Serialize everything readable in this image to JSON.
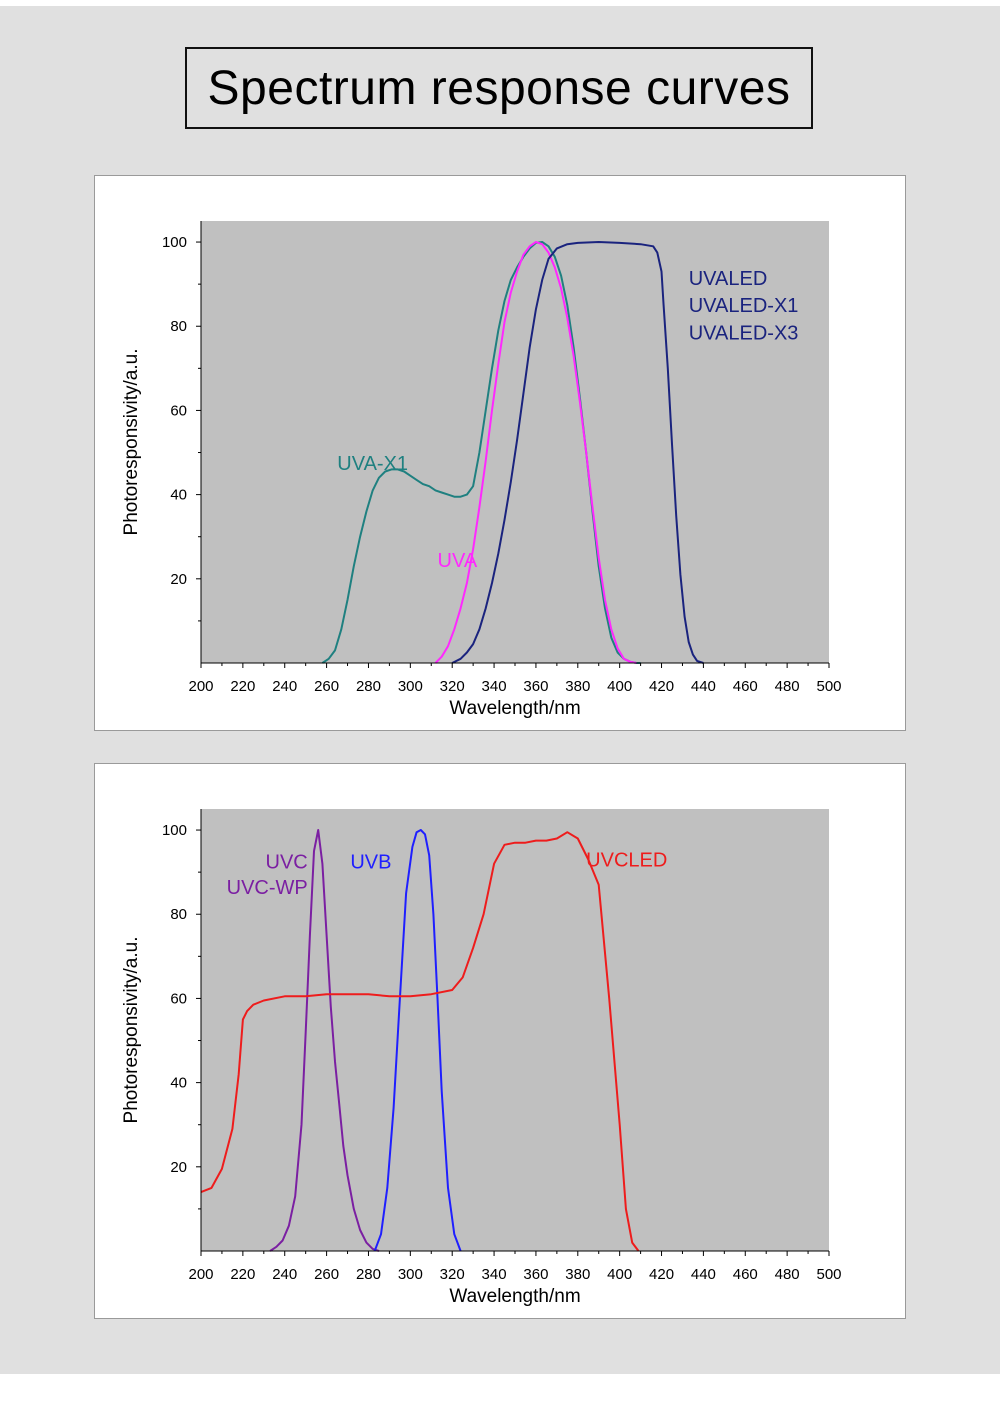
{
  "page": {
    "title": "Spectrum response curves",
    "colors": {
      "page_bg": "#e0e0e0",
      "plot_bg": "#c0c0c0",
      "panel_bg": "#ffffff"
    }
  },
  "chart_data": [
    {
      "type": "line",
      "title": "",
      "xlabel": "Wavelength/nm",
      "ylabel": "Photoresponsivity/a.u.",
      "xlim": [
        200,
        500
      ],
      "ylim": [
        0,
        105
      ],
      "x_ticks": [
        200,
        220,
        240,
        260,
        280,
        300,
        320,
        340,
        360,
        380,
        400,
        420,
        440,
        460,
        480,
        500
      ],
      "y_ticks": [
        20,
        40,
        60,
        80,
        100
      ],
      "grid": false,
      "labels": [
        {
          "text": "UVA-X1",
          "color": "#1f8080",
          "x": 282,
          "y": 47.5,
          "anchor": "middle"
        },
        {
          "text": "UVA",
          "color": "#ff28ff",
          "x": 313,
          "y": 24.5,
          "anchor": "start"
        },
        {
          "text": "UVALED",
          "color": "#1a237e",
          "x": 433,
          "y": 91.5,
          "anchor": "start"
        },
        {
          "text": "UVALED-X1",
          "color": "#1a237e",
          "x": 433,
          "y": 85,
          "anchor": "start"
        },
        {
          "text": "UVALED-X3",
          "color": "#1a237e",
          "x": 433,
          "y": 78.5,
          "anchor": "start"
        }
      ],
      "series": [
        {
          "color": "#1f8080",
          "x": [
            258,
            261,
            264,
            267,
            270,
            273,
            276,
            279,
            282,
            285,
            288,
            291,
            294,
            297,
            300,
            303,
            306,
            309,
            312,
            315,
            318,
            321,
            324,
            327,
            330,
            333,
            336,
            339,
            342,
            345,
            348,
            351,
            354,
            357,
            360,
            363,
            366,
            369,
            372,
            375,
            378,
            381,
            384,
            387,
            390,
            393,
            396,
            399,
            402,
            405,
            408,
            410
          ],
          "y": [
            0,
            1,
            3,
            8,
            15,
            23,
            30,
            36,
            41,
            44,
            45.5,
            46,
            46,
            45.5,
            44.5,
            43.5,
            42.5,
            42,
            41,
            40.5,
            40,
            39.5,
            39.5,
            40,
            42,
            50,
            60,
            70,
            79,
            86,
            91,
            94,
            96.5,
            98.5,
            99.8,
            100,
            99,
            96.5,
            92,
            85,
            75,
            63,
            50,
            36,
            23,
            13,
            6,
            2.5,
            1,
            0.3,
            0,
            0
          ]
        },
        {
          "color": "#ff28ff",
          "x": [
            312,
            315,
            318,
            321,
            324,
            327,
            330,
            333,
            336,
            339,
            342,
            345,
            348,
            351,
            354,
            357,
            360,
            363,
            366,
            369,
            372,
            375,
            378,
            381,
            384,
            387,
            390,
            393,
            396,
            399,
            402,
            405,
            408
          ],
          "y": [
            0,
            1.5,
            4,
            8,
            13,
            19,
            27,
            37,
            48,
            60,
            71,
            81,
            88,
            93,
            97,
            99,
            100,
            99.5,
            97.5,
            94,
            89,
            82,
            73,
            62,
            50,
            37,
            25,
            15,
            8,
            3.5,
            1,
            0.3,
            0
          ]
        },
        {
          "color": "#1a237e",
          "x": [
            320,
            324,
            327,
            330,
            333,
            336,
            339,
            342,
            345,
            348,
            351,
            354,
            357,
            360,
            363,
            366,
            370,
            375,
            380,
            390,
            400,
            410,
            416,
            418,
            420,
            421,
            423,
            425,
            427,
            429,
            431,
            433,
            435,
            437,
            440
          ],
          "y": [
            0,
            1,
            2.5,
            4.5,
            8,
            13,
            19,
            26,
            34,
            43,
            53,
            64,
            75,
            84,
            91,
            96,
            98.5,
            99.5,
            99.8,
            100,
            99.8,
            99.5,
            99,
            97.5,
            93,
            85,
            70,
            52,
            35,
            21,
            11,
            5,
            2,
            0.5,
            0
          ]
        }
      ]
    },
    {
      "type": "line",
      "title": "",
      "xlabel": "Wavelength/nm",
      "ylabel": "Photoresponsivity/a.u.",
      "xlim": [
        200,
        500
      ],
      "ylim": [
        0,
        105
      ],
      "x_ticks": [
        200,
        220,
        240,
        260,
        280,
        300,
        320,
        340,
        360,
        380,
        400,
        420,
        440,
        460,
        480,
        500
      ],
      "y_ticks": [
        20,
        40,
        60,
        80,
        100
      ],
      "grid": false,
      "labels": [
        {
          "text": "UVC",
          "color": "#7b1fa2",
          "x": 251,
          "y": 92.5,
          "anchor": "end"
        },
        {
          "text": "UVC-WP",
          "color": "#7b1fa2",
          "x": 251,
          "y": 86.5,
          "anchor": "end"
        },
        {
          "text": "UVB",
          "color": "#1f1fff",
          "x": 291,
          "y": 92.5,
          "anchor": "end"
        },
        {
          "text": "UVCLED",
          "color": "#ee1c1c",
          "x": 384,
          "y": 93,
          "anchor": "start"
        }
      ],
      "series": [
        {
          "color": "#7b1fa2",
          "x": [
            233,
            236,
            239,
            242,
            245,
            248,
            250,
            252,
            254,
            256,
            258,
            260,
            262,
            264,
            266,
            268,
            270,
            273,
            276,
            279,
            282,
            285
          ],
          "y": [
            0,
            1,
            2.5,
            6,
            13,
            30,
            52,
            75,
            95,
            100,
            92,
            75,
            58,
            45,
            35,
            25,
            18,
            10,
            5,
            2,
            0.5,
            0
          ]
        },
        {
          "color": "#1f1fff",
          "x": [
            283,
            286,
            289,
            292,
            295,
            298,
            301,
            303,
            305,
            307,
            309,
            311,
            313,
            315,
            318,
            321,
            324
          ],
          "y": [
            0,
            4,
            15,
            34,
            60,
            85,
            96,
            99.5,
            100,
            99,
            94,
            80,
            60,
            38,
            15,
            4,
            0
          ]
        },
        {
          "color": "#ee1c1c",
          "x": [
            200,
            205,
            210,
            215,
            218,
            220,
            222,
            225,
            230,
            240,
            250,
            260,
            270,
            280,
            290,
            300,
            310,
            320,
            325,
            330,
            335,
            340,
            345,
            350,
            355,
            360,
            365,
            370,
            375,
            380,
            385,
            390,
            395,
            400,
            403,
            406,
            409
          ],
          "y": [
            14,
            15,
            19.5,
            29,
            42,
            55,
            57,
            58.5,
            59.5,
            60.5,
            60.5,
            61,
            61,
            61,
            60.5,
            60.5,
            61,
            62,
            65,
            72,
            80,
            92,
            96.5,
            97,
            97,
            97.5,
            97.5,
            98,
            99.5,
            98,
            93,
            87,
            60,
            30,
            10,
            2,
            0
          ]
        }
      ]
    }
  ]
}
